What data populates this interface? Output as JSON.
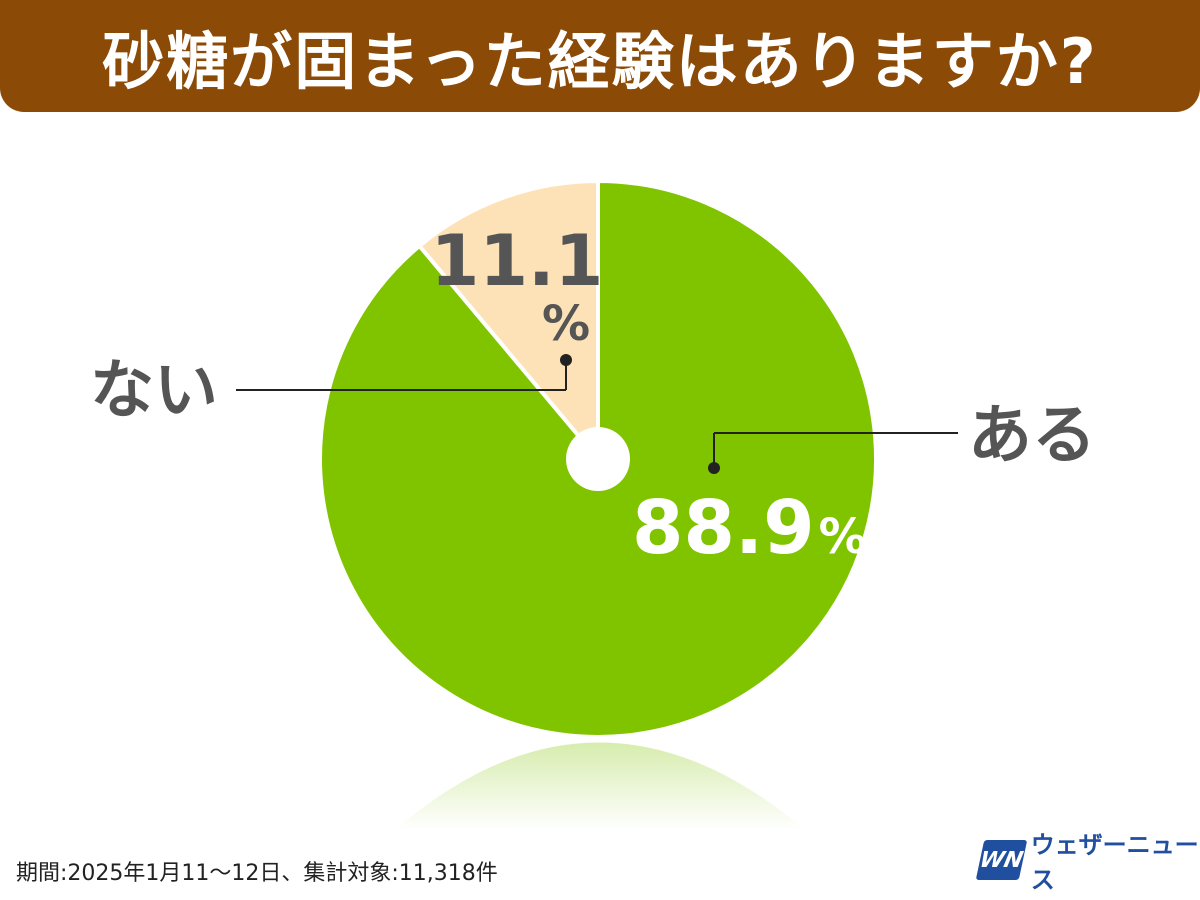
{
  "title": "砂糖が固まった経験はありますか?",
  "footer": {
    "period_note": "期間:2025年1月11〜12日、集計対象:11,318件"
  },
  "brand": {
    "logo_text": "WN",
    "name": "ウェザーニュース"
  },
  "colors": {
    "title_bg": "#8b4a06",
    "yes": "#80c400",
    "no": "#fde2b8",
    "label_text": "#555555"
  },
  "chart_data": {
    "type": "pie",
    "title": "砂糖が固まった経験はありますか?",
    "slices": [
      {
        "label": "ある",
        "value": 88.9,
        "display": "88.9%",
        "color": "#80c400"
      },
      {
        "label": "ない",
        "value": 11.1,
        "display": "11.1%",
        "color": "#fde2b8"
      }
    ],
    "start": "12 o'clock, clockwise",
    "legend": "callout labels outside the pie"
  }
}
